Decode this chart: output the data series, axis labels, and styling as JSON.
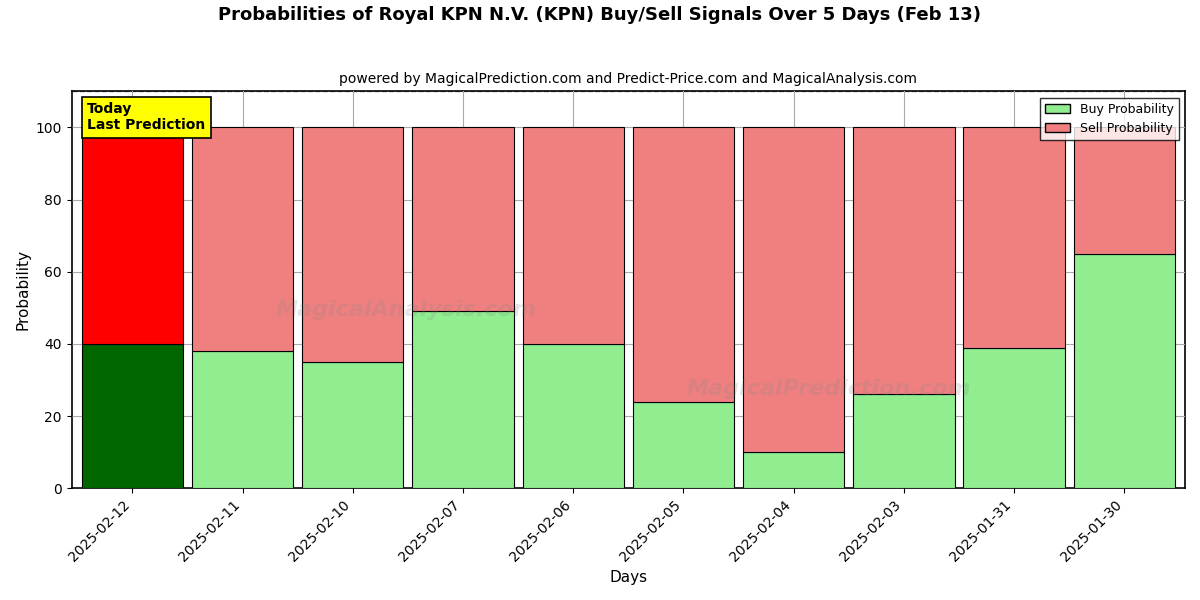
{
  "title": "Probabilities of Royal KPN N.V. (KPN) Buy/Sell Signals Over 5 Days (Feb 13)",
  "subtitle": "powered by MagicalPrediction.com and Predict-Price.com and MagicalAnalysis.com",
  "watermark_line1": "MagicalAnalysis.com",
  "watermark_line2": "MagicalPrediction.com",
  "xlabel": "Days",
  "ylabel": "Probability",
  "dates": [
    "2025-02-12",
    "2025-02-11",
    "2025-02-10",
    "2025-02-07",
    "2025-02-06",
    "2025-02-05",
    "2025-02-04",
    "2025-02-03",
    "2025-01-31",
    "2025-01-30"
  ],
  "buy_values": [
    40,
    38,
    35,
    49,
    40,
    24,
    10,
    26,
    39,
    65
  ],
  "sell_values": [
    60,
    62,
    65,
    51,
    60,
    76,
    90,
    74,
    61,
    35
  ],
  "today_index": 0,
  "today_buy_color": "#006600",
  "today_sell_color": "#ff0000",
  "other_buy_color": "#90EE90",
  "other_sell_color": "#F08080",
  "bar_edge_color": "#000000",
  "today_label_bg": "#ffff00",
  "today_label_text": "Today\nLast Prediction",
  "ylim": [
    0,
    110
  ],
  "yticks": [
    0,
    20,
    40,
    60,
    80,
    100
  ],
  "dashed_line_y": 110,
  "legend_buy_label": "Buy Probability",
  "legend_sell_label": "Sell Probability",
  "background_color": "#ffffff",
  "grid_color": "#aaaaaa",
  "title_fontsize": 13,
  "subtitle_fontsize": 10,
  "axis_label_fontsize": 11,
  "tick_fontsize": 10,
  "bar_width": 0.92
}
